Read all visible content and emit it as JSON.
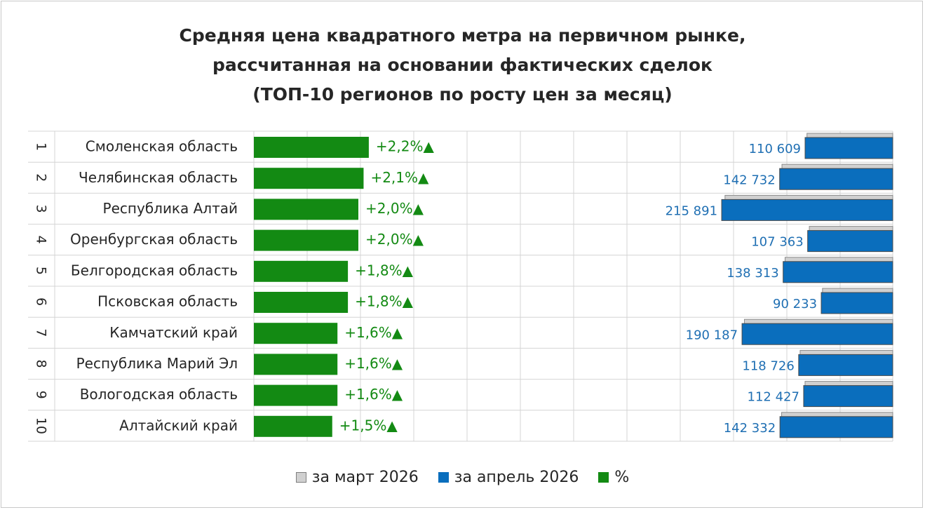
{
  "title_lines": [
    "Средняя цена квадратного метра на первичном рынке,",
    "рассчитанная на основании фактических сделок",
    "(ТОП-10 регионов по росту цен за месяц)"
  ],
  "legend": [
    {
      "label": "за март 2026",
      "color": "#d0d0d0",
      "border": "#7f7f7f"
    },
    {
      "label": "за апрель 2026",
      "color": "#0a6ebd",
      "border": "#0a6ebd"
    },
    {
      "label": "%",
      "color": "#138a13",
      "border": "#138a13"
    }
  ],
  "colors": {
    "march": "#d0d0d0",
    "april": "#0a6ebd",
    "percent": "#138a13",
    "percent_text": "#138a13",
    "april_text": "#1f6fb3",
    "grid": "#d4d4d4",
    "text": "#262626"
  },
  "chart_data": {
    "type": "bar",
    "title": "Средняя цена квадратного метра на первичном рынке, рассчитанная на основании фактических сделок (ТОП-10 регионов по росту цен за месяц)",
    "categories": [
      "Смоленская область",
      "Челябинская область",
      "Республика Алтай",
      "Оренбургская область",
      "Белгородская область",
      "Псковская область",
      "Камчатский край",
      "Республика Марий Эл",
      "Вологодская область",
      "Алтайский край"
    ],
    "ranks": [
      "1",
      "2",
      "3",
      "4",
      "5",
      "6",
      "7",
      "8",
      "9",
      "10"
    ],
    "series": [
      {
        "name": "за март 2026",
        "values": [
          108226,
          139792,
          211658,
          105262,
          135869,
          88637,
          187192,
          116855,
          110655,
          140229
        ]
      },
      {
        "name": "за апрель 2026",
        "values": [
          110609,
          142732,
          215891,
          107363,
          138313,
          90233,
          190187,
          118726,
          112427,
          142332
        ]
      },
      {
        "name": "%",
        "values": [
          2.2,
          2.1,
          2.0,
          2.0,
          1.8,
          1.8,
          1.6,
          1.6,
          1.6,
          1.5
        ]
      }
    ],
    "price_labels": [
      "110 609",
      "142 732",
      "215 891",
      "107 363",
      "138 313",
      "90 233",
      "190 187",
      "118 726",
      "112 427",
      "142 332"
    ],
    "percent_labels": [
      "+2,2%▲",
      "+2,1%▲",
      "+2,0%▲",
      "+2,0%▲",
      "+1,8%▲",
      "+1,8%▲",
      "+1,6%▲",
      "+1,6%▲",
      "+1,6%▲",
      "+1,5%▲"
    ],
    "grid": true,
    "legend_position": "bottom"
  }
}
